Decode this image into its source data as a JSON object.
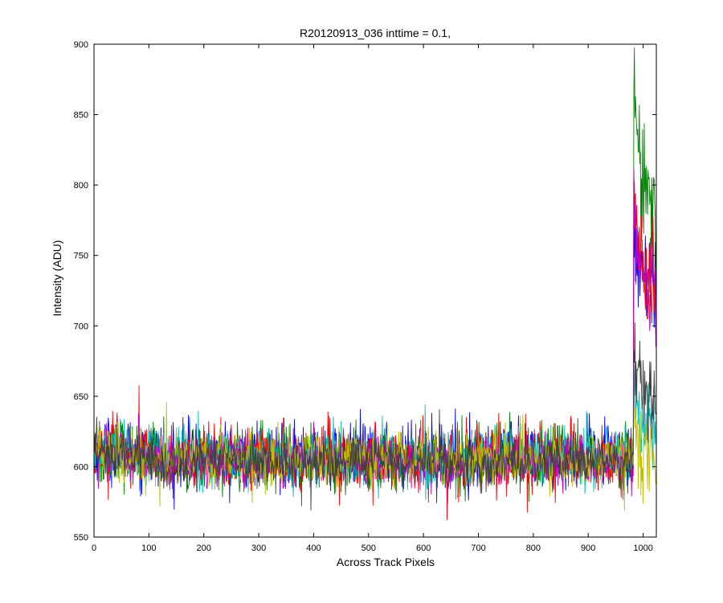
{
  "chart_data": {
    "type": "line",
    "title": "R20120913_036 inttime = 0.1,",
    "xlabel": "Across Track Pixels",
    "ylabel": "Intensity (ADU)",
    "xlim": [
      0,
      1024
    ],
    "ylim": [
      550,
      900
    ],
    "xticks": [
      0,
      100,
      200,
      300,
      400,
      500,
      600,
      700,
      800,
      900,
      1000
    ],
    "yticks": [
      550,
      600,
      650,
      700,
      750,
      800,
      850,
      900
    ],
    "grid": false,
    "legend": "none",
    "n_points": 1024,
    "series": [
      {
        "color": "#0000ff",
        "baseline": 608,
        "noise_sd": 11,
        "left_bump": 6,
        "tail_start": 983,
        "tail_level": 745,
        "tail_peak": 790,
        "tail_end_level": 730
      },
      {
        "color": "#008000",
        "baseline": 606,
        "noise_sd": 11,
        "left_bump": 6,
        "tail_start": 983,
        "tail_level": 820,
        "tail_peak": 885,
        "tail_end_level": 790
      },
      {
        "color": "#ff0000",
        "baseline": 606,
        "noise_sd": 11,
        "left_bump": 6,
        "tail_start": 983,
        "tail_level": 750,
        "tail_peak": 808,
        "tail_end_level": 720
      },
      {
        "color": "#00bfbf",
        "baseline": 606,
        "noise_sd": 10,
        "left_bump": 6,
        "tail_start": 983,
        "tail_level": 640,
        "tail_peak": 660,
        "tail_end_level": 630
      },
      {
        "color": "#bf00bf",
        "baseline": 604,
        "noise_sd": 9,
        "left_bump": 6,
        "tail_start": 983,
        "tail_level": 740,
        "tail_peak": 800,
        "tail_end_level": 720
      },
      {
        "color": "#bfbf00",
        "baseline": 606,
        "noise_sd": 10,
        "left_bump": 6,
        "tail_start": 983,
        "tail_level": 612,
        "tail_peak": 640,
        "tail_end_level": 610
      },
      {
        "color": "#404040",
        "baseline": 604,
        "noise_sd": 9,
        "left_bump": 6,
        "tail_start": 983,
        "tail_level": 660,
        "tail_peak": 688,
        "tail_end_level": 648
      }
    ]
  }
}
